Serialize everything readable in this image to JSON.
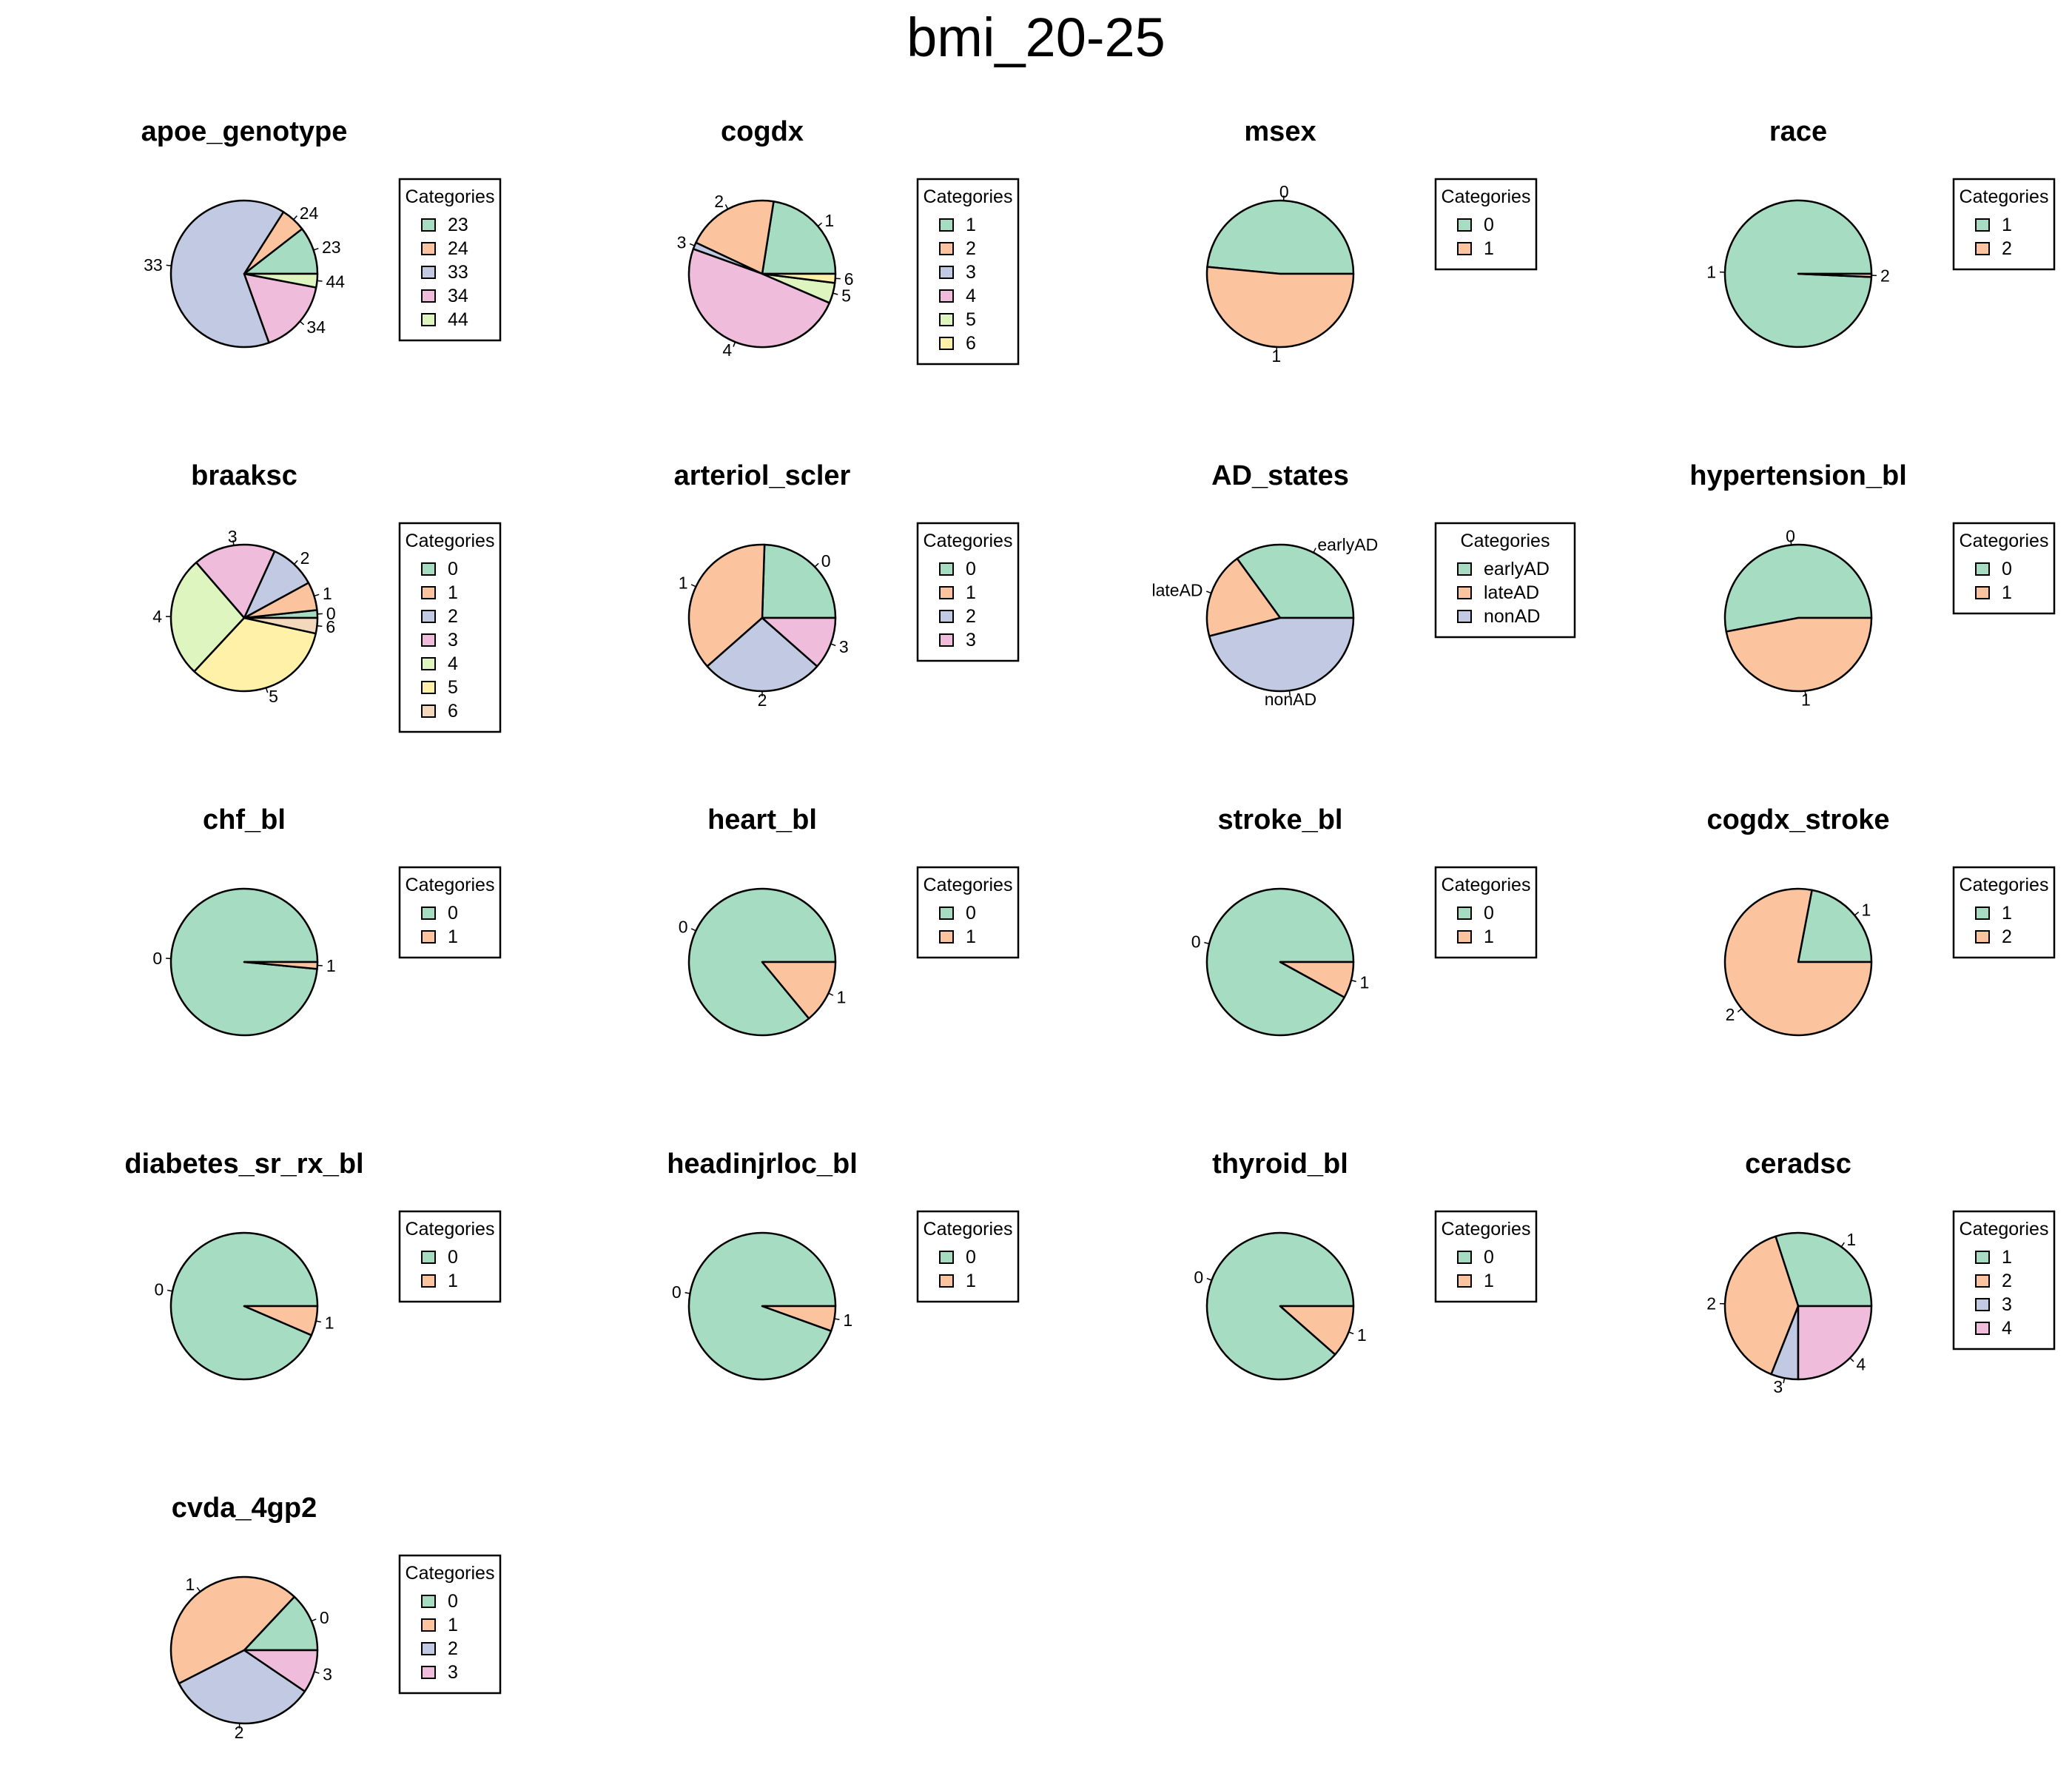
{
  "figure": {
    "title": "bmi_20-25"
  },
  "palette": [
    "#a6dcc2",
    "#fbc49e",
    "#c1cae2",
    "#efbcdc",
    "#dff5bf",
    "#fff2a8",
    "#f3d8bd"
  ],
  "legend_title": "Categories",
  "chart_data": [
    {
      "type": "pie",
      "title": "apoe_genotype",
      "legend_position": "right",
      "categories": [
        "23",
        "24",
        "33",
        "34",
        "44"
      ],
      "values": [
        10.5,
        5.5,
        64.5,
        16.5,
        3
      ]
    },
    {
      "type": "pie",
      "title": "cogdx",
      "legend_position": "right",
      "categories": [
        "1",
        "2",
        "3",
        "4",
        "5",
        "6"
      ],
      "values": [
        22.5,
        20.5,
        1.5,
        49,
        4.5,
        2
      ]
    },
    {
      "type": "pie",
      "title": "msex",
      "legend_position": "right",
      "categories": [
        "0",
        "1"
      ],
      "values": [
        48.5,
        51.5
      ]
    },
    {
      "type": "pie",
      "title": "race",
      "legend_position": "right",
      "categories": [
        "1",
        "2"
      ],
      "values": [
        99.3,
        0.7
      ]
    },
    {
      "type": "pie",
      "title": "braaksc",
      "legend_position": "right",
      "categories": [
        "0",
        "1",
        "2",
        "3",
        "4",
        "5",
        "6"
      ],
      "values": [
        1.5,
        5.5,
        9,
        16,
        23.5,
        29.5,
        3
      ]
    },
    {
      "type": "pie",
      "title": "arteriol_scler",
      "legend_position": "right",
      "categories": [
        "0",
        "1",
        "2",
        "3"
      ],
      "values": [
        24.5,
        37,
        27,
        11.5
      ]
    },
    {
      "type": "pie",
      "title": "AD_states",
      "legend_position": "right",
      "categories": [
        "earlyAD",
        "lateAD",
        "nonAD"
      ],
      "values": [
        35,
        19,
        46
      ]
    },
    {
      "type": "pie",
      "title": "hypertension_bl",
      "legend_position": "right",
      "categories": [
        "0",
        "1"
      ],
      "values": [
        53,
        47
      ]
    },
    {
      "type": "pie",
      "title": "chf_bl",
      "legend_position": "right",
      "categories": [
        "0",
        "1"
      ],
      "values": [
        98.5,
        1.5
      ]
    },
    {
      "type": "pie",
      "title": "heart_bl",
      "legend_position": "right",
      "categories": [
        "0",
        "1"
      ],
      "values": [
        86,
        14
      ]
    },
    {
      "type": "pie",
      "title": "stroke_bl",
      "legend_position": "right",
      "categories": [
        "0",
        "1"
      ],
      "values": [
        92,
        8
      ]
    },
    {
      "type": "pie",
      "title": "cogdx_stroke",
      "legend_position": "right",
      "categories": [
        "1",
        "2"
      ],
      "values": [
        22,
        78
      ]
    },
    {
      "type": "pie",
      "title": "diabetes_sr_rx_bl",
      "legend_position": "right",
      "categories": [
        "0",
        "1"
      ],
      "values": [
        93.5,
        6.5
      ]
    },
    {
      "type": "pie",
      "title": "headinjrloc_bl",
      "legend_position": "right",
      "categories": [
        "0",
        "1"
      ],
      "values": [
        94.5,
        5.5
      ]
    },
    {
      "type": "pie",
      "title": "thyroid_bl",
      "legend_position": "right",
      "categories": [
        "0",
        "1"
      ],
      "values": [
        88.5,
        11.5
      ]
    },
    {
      "type": "pie",
      "title": "ceradsc",
      "legend_position": "right",
      "categories": [
        "1",
        "2",
        "3",
        "4"
      ],
      "values": [
        30,
        39,
        6,
        25
      ]
    },
    {
      "type": "pie",
      "title": "cvda_4gp2",
      "legend_position": "right",
      "categories": [
        "0",
        "1",
        "2",
        "3"
      ],
      "values": [
        13,
        44.5,
        33,
        9.5
      ]
    }
  ]
}
